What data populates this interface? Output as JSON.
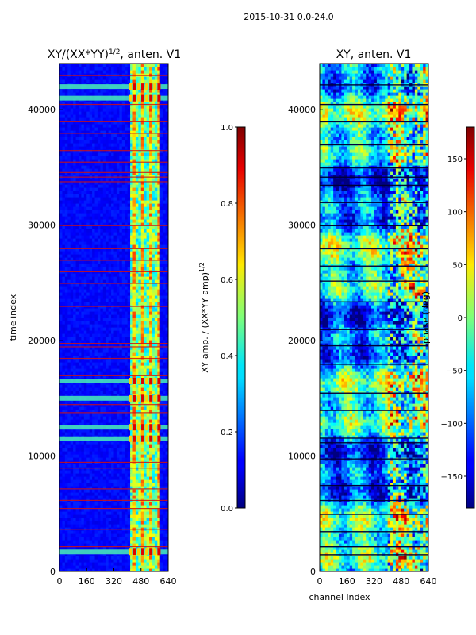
{
  "figure": {
    "suptitle": "2015-10-31 0.0-24.0",
    "xlabel": "channel index"
  },
  "chart_data": [
    {
      "type": "heatmap",
      "title": "XY/(XX*YY)",
      "title_sup": "1/2",
      "title_suffix": ", anten. V1",
      "ylabel": "time index",
      "xlim": [
        0,
        640
      ],
      "ylim": [
        0,
        44000
      ],
      "xticks": [
        0,
        160,
        320,
        480,
        640
      ],
      "xtick_labels": [
        "0",
        "160",
        "320",
        "480",
        "640"
      ],
      "yticks": [
        0,
        10000,
        20000,
        30000,
        40000
      ],
      "ytick_labels": [
        "0",
        "10000",
        "20000",
        "30000",
        "40000"
      ],
      "colormap": "jet",
      "colorbar": {
        "label": "XY amp. / (XX*YY amp)",
        "label_sup": "1/2",
        "range": [
          0.0,
          1.0
        ],
        "ticks": [
          0.0,
          0.2,
          0.4,
          0.6,
          0.8,
          1.0
        ],
        "tick_labels": [
          "0.0",
          "0.2",
          "0.4",
          "0.6",
          "0.8",
          "1.0"
        ]
      },
      "features": {
        "background_value": 0.1,
        "high_channel_band": [
          410,
          600
        ],
        "bright_rows": [
          1700,
          11500,
          12500,
          15000,
          16500,
          41000,
          42000
        ],
        "red_rows": [
          2200,
          3700,
          5500,
          6200,
          7200,
          9000,
          9500,
          13800,
          14500,
          17000,
          18500,
          19500,
          19800,
          23000,
          25000,
          26000,
          27000,
          28000,
          30000,
          33800,
          34200,
          34600,
          35500,
          36500,
          38000,
          39000,
          40500,
          43000
        ]
      }
    },
    {
      "type": "heatmap",
      "title": "XY, anten. V1",
      "xlim": [
        0,
        640
      ],
      "ylim": [
        0,
        44000
      ],
      "xticks": [
        0,
        160,
        320,
        480,
        640
      ],
      "xtick_labels": [
        "0",
        "160",
        "320",
        "480",
        "640"
      ],
      "yticks": [
        0,
        10000,
        20000,
        30000,
        40000
      ],
      "ytick_labels": [
        "0",
        "10000",
        "20000",
        "30000",
        "40000"
      ],
      "colormap": "jet",
      "colorbar": {
        "label": "phase (deg)",
        "range": [
          -180,
          180
        ],
        "ticks": [
          -150,
          -100,
          -50,
          0,
          50,
          100,
          150
        ],
        "tick_labels": [
          "−150",
          "−100",
          "−50",
          "0",
          "50",
          "100",
          "150"
        ]
      },
      "features": {
        "dark_lines": [
          1500,
          2200,
          3500,
          5000,
          6200,
          7500,
          9800,
          11200,
          11600,
          14000,
          15500,
          18000,
          19600,
          21000,
          23400,
          25200,
          26500,
          28000,
          30000,
          32000,
          33500,
          34200,
          35000,
          37000,
          39000,
          40500,
          42200
        ]
      }
    }
  ],
  "colors": {
    "figure_bg": "#ffffff",
    "axes_edge": "#000000"
  }
}
